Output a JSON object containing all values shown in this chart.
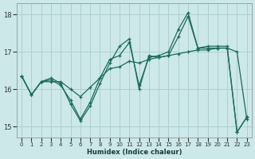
{
  "xlabel": "Humidex (Indice chaleur)",
  "bg_color": "#cce8e8",
  "grid_color": "#aacccc",
  "line_color": "#1a6b5a",
  "xlim": [
    -0.5,
    23.5
  ],
  "ylim": [
    14.7,
    18.3
  ],
  "yticks": [
    15,
    16,
    17,
    18
  ],
  "xticks": [
    0,
    1,
    2,
    3,
    4,
    5,
    6,
    7,
    8,
    9,
    10,
    11,
    12,
    13,
    14,
    15,
    16,
    17,
    18,
    19,
    20,
    21,
    22,
    23
  ],
  "series1_x": [
    0,
    1,
    2,
    3,
    4,
    5,
    6,
    7,
    8,
    9,
    10,
    11,
    12,
    13,
    14,
    15,
    16,
    17,
    18,
    19,
    20,
    21,
    22,
    23
  ],
  "series1_y": [
    16.35,
    15.85,
    16.2,
    16.2,
    16.2,
    16.0,
    15.8,
    16.05,
    16.3,
    16.55,
    16.6,
    16.75,
    16.7,
    16.8,
    16.85,
    16.9,
    16.95,
    17.0,
    17.05,
    17.05,
    17.1,
    17.1,
    17.0,
    15.2
  ],
  "series2_x": [
    0,
    1,
    2,
    3,
    4,
    5,
    6,
    7,
    8,
    9,
    10,
    11,
    12,
    13,
    14,
    15,
    16,
    17,
    18,
    19,
    20,
    21,
    22,
    23
  ],
  "series2_y": [
    16.35,
    15.85,
    16.2,
    16.25,
    16.1,
    15.7,
    15.2,
    15.65,
    16.3,
    16.8,
    16.9,
    17.25,
    16.1,
    16.85,
    16.9,
    17.0,
    17.6,
    18.05,
    17.1,
    17.15,
    17.15,
    17.15,
    14.85,
    15.25
  ],
  "series3_x": [
    0,
    1,
    2,
    3,
    4,
    5,
    6,
    7,
    8,
    9,
    10,
    11,
    12,
    13,
    14,
    15,
    16,
    17,
    18,
    19,
    20,
    21,
    22,
    23
  ],
  "series3_y": [
    16.35,
    15.85,
    16.2,
    16.3,
    16.15,
    15.6,
    15.15,
    15.55,
    16.15,
    16.7,
    17.15,
    17.35,
    16.0,
    16.9,
    16.85,
    16.9,
    17.4,
    17.95,
    17.1,
    17.1,
    17.1,
    17.1,
    14.85,
    15.25
  ]
}
